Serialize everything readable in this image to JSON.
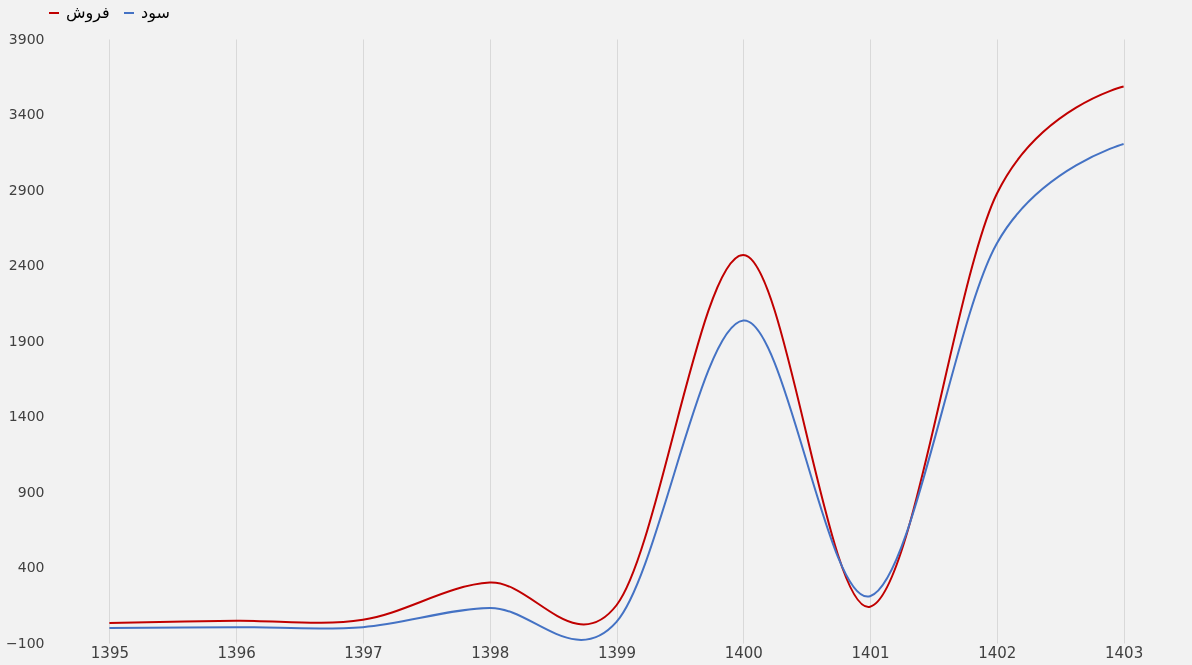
{
  "chart_data": {
    "type": "line",
    "categories": [
      "1395",
      "1396",
      "1397",
      "1398",
      "1399",
      "1400",
      "1401",
      "1402",
      "1403"
    ],
    "series": [
      {
        "name": "فروش",
        "color": "#c00000",
        "values": [
          33,
          47,
          54,
          300,
          150,
          2470,
          140,
          2875,
          3585
        ]
      },
      {
        "name": "سود",
        "color": "#4472c4",
        "values": [
          0,
          5,
          5,
          132,
          40,
          2035,
          210,
          2546,
          3205
        ]
      }
    ],
    "ylim": [
      -100,
      3900
    ],
    "yticks": [
      -100,
      400,
      900,
      1400,
      1900,
      2400,
      2900,
      3400,
      3900
    ],
    "grid": "x",
    "legend": "top",
    "marker": "none",
    "line_style": "solid"
  }
}
